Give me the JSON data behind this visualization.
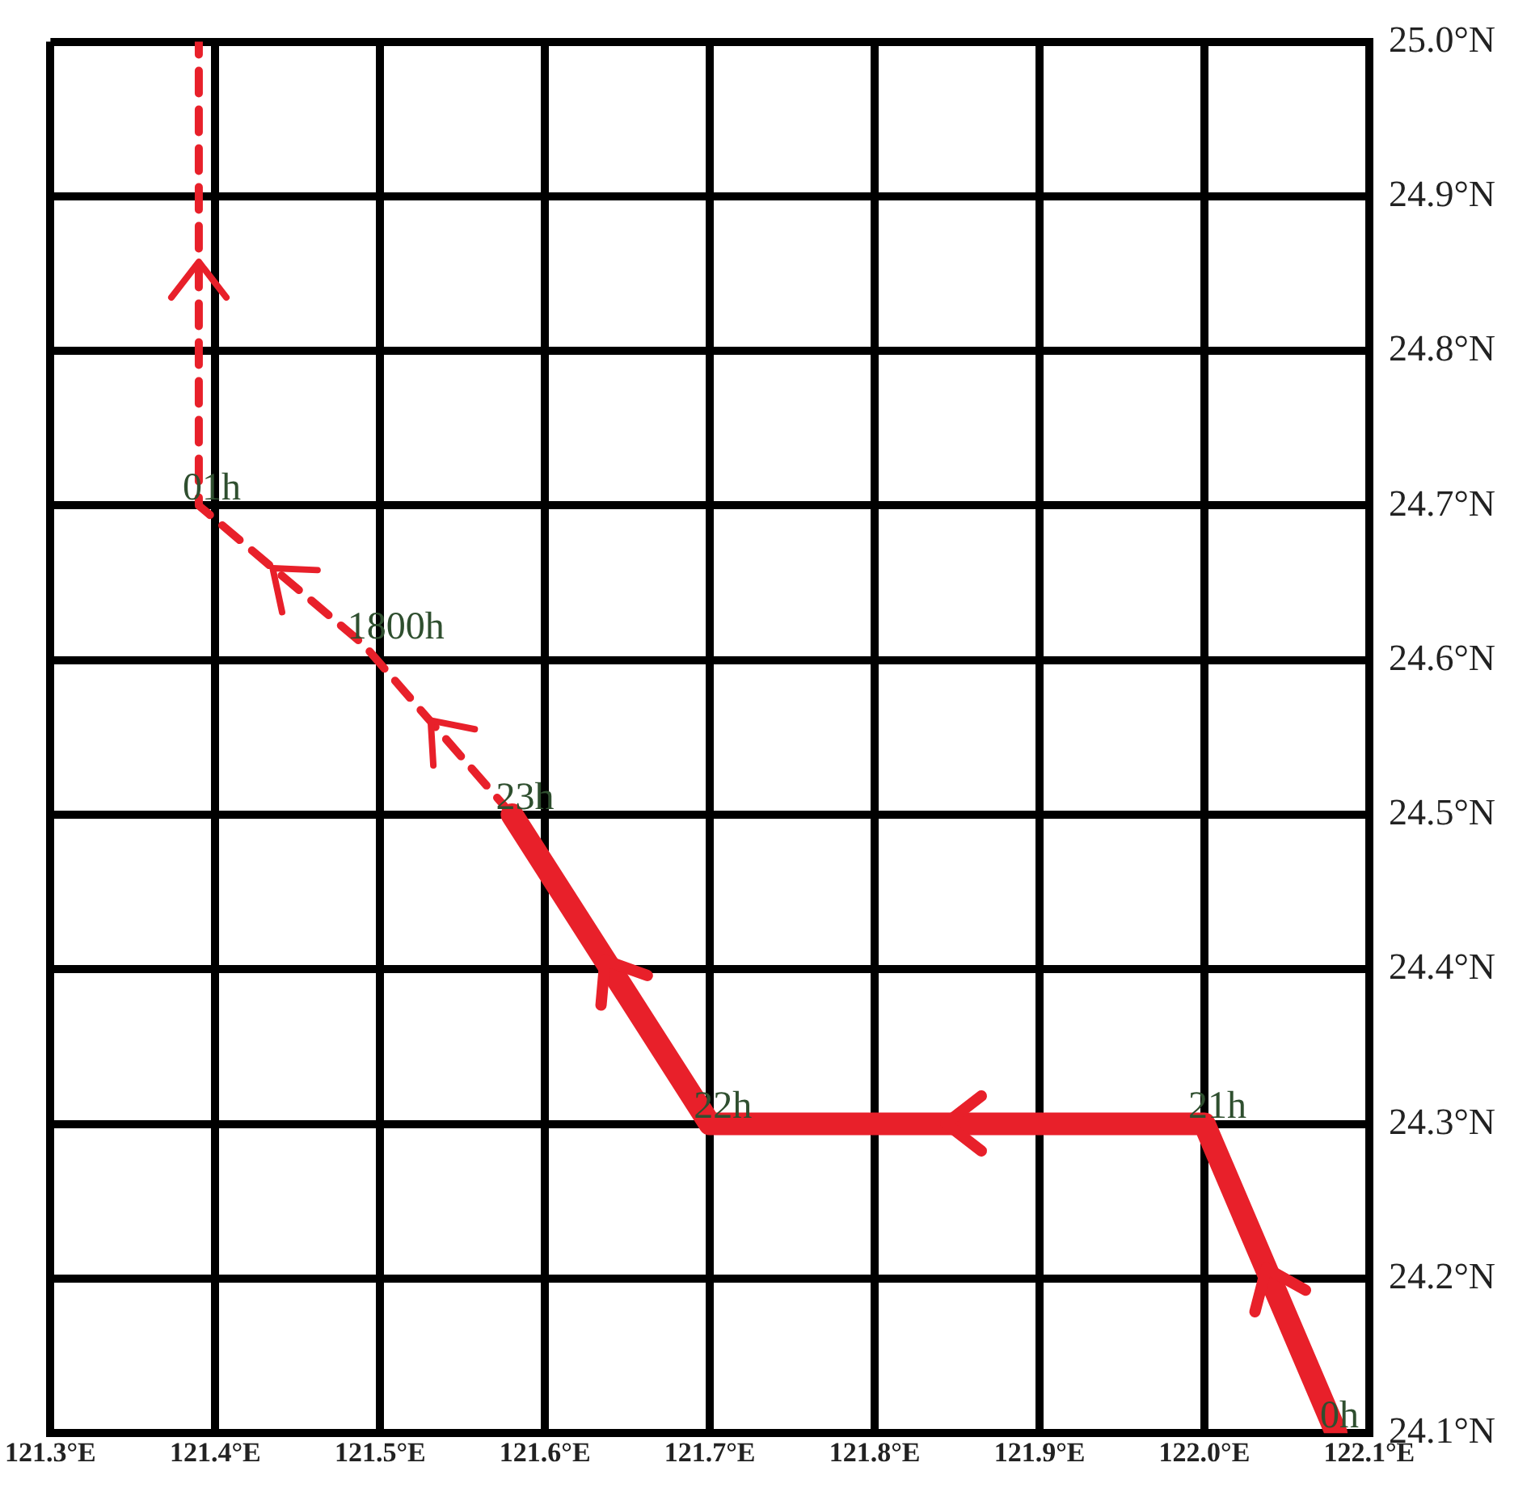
{
  "chart_data": {
    "type": "line",
    "xlim": [
      121.3,
      122.1
    ],
    "ylim": [
      24.1,
      25.0
    ],
    "xticks": [
      {
        "value": 121.3,
        "label": "121.3°E"
      },
      {
        "value": 121.4,
        "label": "121.4°E"
      },
      {
        "value": 121.5,
        "label": "121.5°E"
      },
      {
        "value": 121.6,
        "label": "121.6°E"
      },
      {
        "value": 121.7,
        "label": "121.7°E"
      },
      {
        "value": 121.8,
        "label": "121.8°E"
      },
      {
        "value": 121.9,
        "label": "121.9°E"
      },
      {
        "value": 122.0,
        "label": "122.0°E"
      },
      {
        "value": 122.1,
        "label": "122.1°E"
      }
    ],
    "yticks": [
      {
        "value": 24.1,
        "label": "24.1°N"
      },
      {
        "value": 24.2,
        "label": "24.2°N"
      },
      {
        "value": 24.3,
        "label": "24.3°N"
      },
      {
        "value": 24.4,
        "label": "24.4°N"
      },
      {
        "value": 24.5,
        "label": "24.5°N"
      },
      {
        "value": 24.6,
        "label": "24.6°N"
      },
      {
        "value": 24.7,
        "label": "24.7°N"
      },
      {
        "value": 24.8,
        "label": "24.8°N"
      },
      {
        "value": 24.9,
        "label": "24.9°N"
      },
      {
        "value": 25.0,
        "label": "25.0°N"
      }
    ],
    "series": [
      {
        "color": "#e8202a",
        "line_style": "solid",
        "x": [
          122.08,
          122.0,
          121.7,
          121.58
        ],
        "values": [
          24.1,
          24.3,
          24.3,
          24.5
        ]
      },
      {
        "color": "#e8202a",
        "line_style": "dashed",
        "x": [
          121.58,
          121.49,
          121.39,
          121.39
        ],
        "values": [
          24.5,
          24.61,
          24.7,
          25.0
        ]
      }
    ],
    "annotations": [
      {
        "text": "0h",
        "x": 122.08,
        "y": 24.1
      },
      {
        "text": "21h",
        "x": 122.0,
        "y": 24.3
      },
      {
        "text": "22h",
        "x": 121.7,
        "y": 24.3
      },
      {
        "text": "23h",
        "x": 121.58,
        "y": 24.5
      },
      {
        "text": "1800h",
        "x": 121.49,
        "y": 24.61
      },
      {
        "text": "01h",
        "x": 121.39,
        "y": 24.7
      }
    ],
    "grid": true,
    "marker": "none",
    "legend": false
  }
}
